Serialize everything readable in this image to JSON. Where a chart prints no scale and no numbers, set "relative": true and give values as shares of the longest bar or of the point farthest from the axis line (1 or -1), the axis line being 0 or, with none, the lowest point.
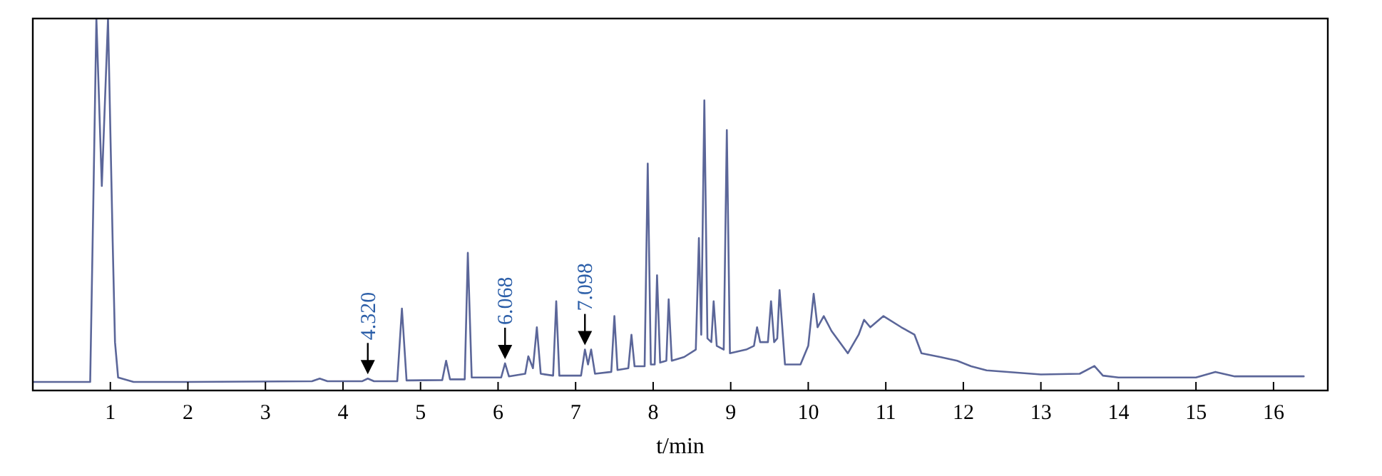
{
  "chart_data": {
    "type": "line",
    "relative": true,
    "xlabel": "t/min",
    "xlim": [
      0,
      16.7
    ],
    "xticks": [
      1,
      2,
      3,
      4,
      5,
      6,
      7,
      8,
      9,
      10,
      11,
      12,
      13,
      14,
      15,
      16
    ],
    "tick_labels": "x",
    "marker": "none",
    "line_style": "solid",
    "series": [
      {
        "color": "#5b6699",
        "x": [
          0,
          0.74,
          0.78,
          0.82,
          0.89,
          0.97,
          1.03,
          1.06,
          1.1,
          1.3,
          2,
          3.6,
          3.7,
          3.8,
          4.25,
          4.32,
          4.4,
          4.7,
          4.76,
          4.82,
          5.28,
          5.33,
          5.38,
          5.57,
          5.61,
          5.66,
          6.04,
          6.09,
          6.14,
          6.35,
          6.39,
          6.45,
          6.5,
          6.55,
          6.71,
          6.75,
          6.79,
          7.07,
          7.12,
          7.16,
          7.2,
          7.25,
          7.46,
          7.5,
          7.54,
          7.68,
          7.72,
          7.76,
          7.89,
          7.93,
          7.97,
          8.02,
          8.05,
          8.09,
          8.17,
          8.2,
          8.24,
          8.4,
          8.55,
          8.59,
          8.62,
          8.66,
          8.7,
          8.75,
          8.78,
          8.82,
          8.91,
          8.95,
          8.99,
          9.2,
          9.3,
          9.34,
          9.38,
          9.48,
          9.52,
          9.56,
          9.6,
          9.63,
          9.7,
          9.9,
          10.0,
          10.07,
          10.12,
          10.2,
          10.3,
          10.51,
          10.65,
          10.72,
          10.8,
          10.97,
          11.2,
          11.37,
          11.46,
          11.7,
          11.92,
          12.1,
          12.3,
          13.0,
          13.5,
          13.69,
          13.8,
          14.0,
          15.0,
          15.25,
          15.5,
          16.39
        ],
        "values": [
          0.023,
          0.023,
          0.5,
          1,
          0.55,
          1,
          0.4,
          0.13,
          0.035,
          0.023,
          0.023,
          0.025,
          0.032,
          0.025,
          0.025,
          0.032,
          0.025,
          0.025,
          0.22,
          0.027,
          0.028,
          0.08,
          0.03,
          0.03,
          0.37,
          0.035,
          0.035,
          0.073,
          0.038,
          0.045,
          0.092,
          0.06,
          0.17,
          0.045,
          0.04,
          0.24,
          0.04,
          0.04,
          0.11,
          0.07,
          0.11,
          0.045,
          0.05,
          0.2,
          0.055,
          0.06,
          0.15,
          0.065,
          0.065,
          0.61,
          0.07,
          0.07,
          0.31,
          0.075,
          0.08,
          0.245,
          0.08,
          0.09,
          0.11,
          0.41,
          0.15,
          0.78,
          0.14,
          0.13,
          0.24,
          0.12,
          0.11,
          0.7,
          0.1,
          0.11,
          0.12,
          0.17,
          0.13,
          0.13,
          0.24,
          0.13,
          0.14,
          0.27,
          0.07,
          0.07,
          0.12,
          0.26,
          0.17,
          0.2,
          0.16,
          0.1,
          0.15,
          0.19,
          0.17,
          0.2,
          0.17,
          0.15,
          0.1,
          0.09,
          0.08,
          0.065,
          0.054,
          0.043,
          0.045,
          0.066,
          0.04,
          0.035,
          0.035,
          0.05,
          0.038,
          0.038
        ]
      }
    ],
    "annotations": [
      {
        "text": "4.320",
        "x": 4.32,
        "y": 0.032
      },
      {
        "text": "6.068",
        "x": 6.09,
        "y": 0.073
      },
      {
        "text": "7.098",
        "x": 7.12,
        "y": 0.11
      }
    ]
  }
}
